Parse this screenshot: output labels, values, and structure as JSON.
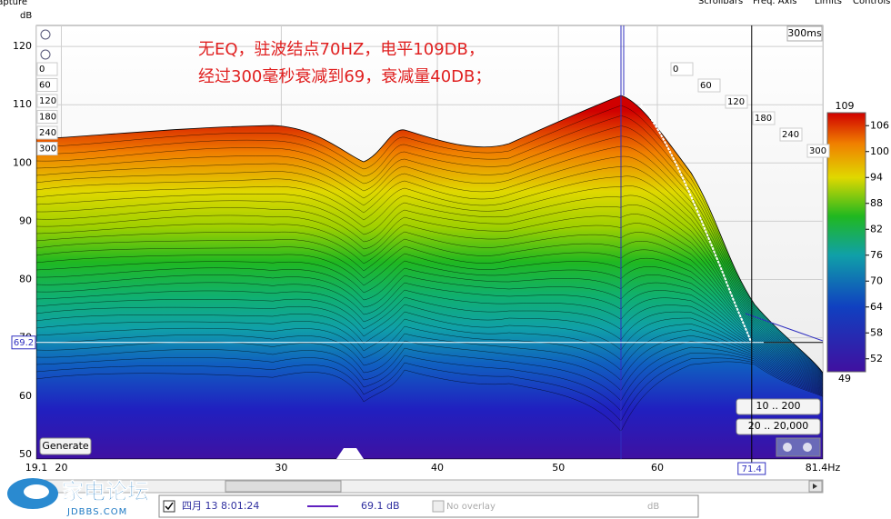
{
  "menu": [
    "Scrollbars",
    "Freq. Axis",
    "Limits",
    "Controls"
  ],
  "top_left": {
    "capture": "Capture",
    "unit": "dB"
  },
  "plot": {
    "ylim": [
      49.2,
      123.6
    ],
    "yticks": [
      50,
      60,
      70,
      80,
      90,
      100,
      110,
      120
    ],
    "xlim": [
      19.1,
      81.4
    ],
    "x_log": true,
    "xticks": [
      19.1,
      20,
      30,
      40,
      50,
      60,
      {
        "value": 81.4,
        "label": "81.4Hz"
      }
    ],
    "annotation": [
      "无EQ，驻波结点70HZ，电平109DB，",
      "经过300毫秒衰减到69，衰减量40DB；"
    ],
    "time_labels_left": [
      0,
      60,
      120,
      180,
      240,
      300
    ],
    "time_labels_right": [
      0,
      60,
      120,
      180,
      240,
      300
    ],
    "time_range_label": "300ms",
    "cursor": {
      "level": 69.2,
      "frequency": 71.4
    }
  },
  "colorbar": {
    "lim": [
      49,
      109
    ],
    "ticks": [
      49,
      52,
      58,
      64,
      70,
      76,
      82,
      88,
      94,
      100,
      106,
      109
    ]
  },
  "buttons": {
    "generate": "Generate",
    "range1": "10 .. 200",
    "range2": "20 .. 20,000"
  },
  "status": {
    "date": "四月 13 8:01:24",
    "value": "69.1 dB",
    "overlay": "No overlay",
    "unit": "dB"
  },
  "watermark": {
    "name": "家电论坛",
    "site": "JDBBS.COM"
  }
}
